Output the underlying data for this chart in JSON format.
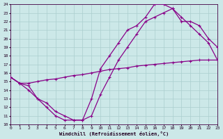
{
  "xlabel": "Windchill (Refroidissement éolien,°C)",
  "bg_color": "#cce8e8",
  "grid_color": "#aacece",
  "line_color": "#880088",
  "xlim": [
    0,
    23
  ],
  "ylim": [
    10,
    24
  ],
  "xticks": [
    0,
    1,
    2,
    3,
    4,
    5,
    6,
    7,
    8,
    9,
    10,
    11,
    12,
    13,
    14,
    15,
    16,
    17,
    18,
    19,
    20,
    21,
    22,
    23
  ],
  "yticks": [
    10,
    11,
    12,
    13,
    14,
    15,
    16,
    17,
    18,
    19,
    20,
    21,
    22,
    23,
    24
  ],
  "line1_x": [
    0,
    1,
    2,
    3,
    4,
    5,
    6,
    7,
    8,
    9,
    10,
    11,
    12,
    13,
    14,
    15,
    16,
    17,
    18,
    19,
    20,
    21,
    22,
    23
  ],
  "line1_y": [
    15.5,
    14.8,
    14.8,
    15.0,
    15.2,
    15.3,
    15.5,
    15.7,
    15.8,
    16.0,
    16.2,
    16.4,
    16.5,
    16.6,
    16.8,
    16.9,
    17.0,
    17.1,
    17.2,
    17.3,
    17.4,
    17.5,
    17.5,
    17.5
  ],
  "line2_x": [
    0,
    1,
    2,
    3,
    4,
    5,
    6,
    7,
    8,
    9,
    10,
    11,
    12,
    13,
    14,
    15,
    16,
    17,
    18,
    19,
    20,
    21,
    22,
    23
  ],
  "line2_y": [
    15.5,
    14.8,
    14.0,
    13.0,
    12.0,
    11.0,
    10.5,
    10.5,
    10.5,
    13.0,
    16.5,
    18.0,
    19.5,
    21.0,
    21.5,
    22.5,
    24.0,
    24.0,
    23.5,
    22.0,
    22.0,
    21.5,
    20.0,
    19.0
  ],
  "line3_x": [
    0,
    1,
    2,
    3,
    4,
    5,
    6,
    7,
    8,
    9,
    10,
    11,
    12,
    13,
    14,
    15,
    16,
    17,
    18,
    19,
    20,
    21,
    22,
    23
  ],
  "line3_y": [
    15.5,
    14.8,
    14.5,
    13.0,
    12.5,
    11.5,
    11.0,
    10.5,
    10.5,
    11.0,
    13.5,
    15.5,
    17.5,
    19.0,
    20.5,
    22.0,
    22.5,
    23.0,
    23.5,
    22.5,
    21.5,
    20.5,
    19.5,
    17.5
  ]
}
